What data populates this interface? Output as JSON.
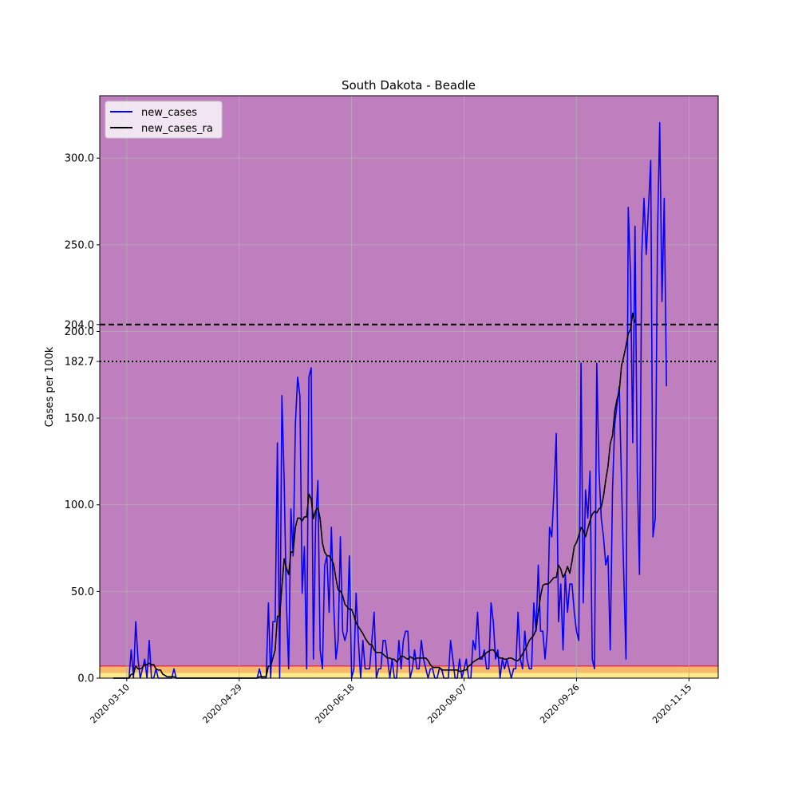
{
  "chart_data": {
    "type": "line",
    "title": "South Dakota - Beadle",
    "xlabel": "",
    "ylabel": "Cases per 100k",
    "x_start": "2020-03-04",
    "x_end": "2020-11-17",
    "xlim": [
      "2020-02-27",
      "2020-11-28"
    ],
    "ylim": [
      0,
      336
    ],
    "grid": true,
    "legend_position": "top-left",
    "x_ticks": [
      "2020-03-10",
      "2020-04-29",
      "2020-06-18",
      "2020-08-07",
      "2020-09-26",
      "2020-11-15"
    ],
    "y_ticks": [
      0.0,
      50.0,
      100.0,
      150.0,
      182.7,
      200.0,
      204.0,
      250.0,
      300.0
    ],
    "y_tick_labels": [
      "0.0",
      "50.0",
      "100.0",
      "150.0",
      "182.7",
      "200.0",
      "204.0",
      "250.0",
      "300.0"
    ],
    "reference_lines": [
      {
        "value": 204.0,
        "style": "dashed",
        "color": "#000000"
      },
      {
        "value": 182.7,
        "style": "dotted",
        "color": "#000000"
      }
    ],
    "background_bands": [
      {
        "from": 0,
        "to": 3,
        "color": "#fde98a"
      },
      {
        "from": 3,
        "to": 7,
        "color": "#f7b96a"
      },
      {
        "from": 7,
        "to": 336,
        "color": "#bf7fbf"
      }
    ],
    "threshold_line": {
      "value": 7,
      "color": "#e0325f"
    },
    "series": [
      {
        "name": "new_cases",
        "color": "#0000ff",
        "values": [
          0,
          0,
          0,
          0,
          0,
          0,
          0,
          0,
          16.3,
          0,
          32.6,
          10.9,
          0,
          5.4,
          10.9,
          0,
          21.7,
          0,
          0,
          5.4,
          0,
          0,
          0,
          0,
          0,
          0,
          0,
          5.4,
          0,
          0,
          0,
          0,
          0,
          0,
          0,
          0,
          0,
          0,
          0,
          0,
          0,
          0,
          0,
          0,
          0,
          0,
          0,
          0,
          0,
          0,
          0,
          0,
          0,
          0,
          0,
          0,
          0,
          0,
          0,
          0,
          0,
          0,
          0,
          0,
          0,
          5.4,
          0,
          0,
          0,
          43.4,
          0,
          32.6,
          32.6,
          135.7,
          0,
          163,
          114,
          43.4,
          5.4,
          97.7,
          70.5,
          146.6,
          173.7,
          162.8,
          49,
          76,
          5.4,
          173.7,
          179,
          11,
          90,
          114,
          16.3,
          5.4,
          65,
          70.5,
          38,
          87,
          43.4,
          11,
          21.7,
          81.5,
          27,
          21.7,
          27,
          70.5,
          0,
          5.4,
          49,
          21.7,
          0,
          21.7,
          5.4,
          5.4,
          5.4,
          21.7,
          38,
          0,
          5.4,
          5.4,
          21.7,
          21.7,
          11,
          0,
          11,
          0,
          0,
          21.7,
          5.4,
          21.7,
          27.1,
          27.1,
          0,
          5.4,
          16.3,
          5.4,
          5.4,
          21.7,
          11,
          5.4,
          0,
          5.4,
          5.4,
          0,
          0,
          5.4,
          5.4,
          0,
          0,
          0,
          21.7,
          11,
          0,
          0,
          11,
          0,
          5.4,
          11,
          0,
          0,
          21.7,
          16.3,
          38,
          11,
          11,
          16.3,
          5.4,
          5.4,
          43.4,
          32.6,
          11,
          16.3,
          0,
          11,
          5.4,
          11,
          5.4,
          0,
          5.4,
          5.4,
          38,
          11,
          5.4,
          27.1,
          11,
          5.4,
          5.4,
          43.4,
          27.1,
          65.2,
          27.1,
          27.1,
          11,
          27.1,
          87,
          81.5,
          108.6,
          141.2,
          32.6,
          54.3,
          16.3,
          59.8,
          38,
          54.3,
          54.3,
          38,
          27.1,
          21.7,
          181.7,
          43.4,
          108.6,
          92.3,
          119.5,
          11,
          5.4,
          181.7,
          119.5,
          92.3,
          81.5,
          65.2,
          70.6,
          16.3,
          108.6,
          146.6,
          157.5,
          168.4,
          113,
          59.8,
          11,
          271.6,
          233.6,
          135.8,
          260.7,
          119.5,
          59.8,
          244.4,
          276.9,
          244.4,
          271.6,
          298.7,
          81.5,
          92.3,
          255.2,
          320.5,
          217.3,
          276.9,
          168.4
        ]
      },
      {
        "name": "new_cases_ra",
        "color": "#000000",
        "values": [
          0,
          0,
          0,
          0,
          0,
          0,
          0,
          0,
          2.3,
          2.3,
          7,
          5.4,
          5.4,
          6.2,
          7.8,
          7.8,
          8.6,
          7.8,
          7.8,
          5.4,
          4.7,
          4.7,
          2.3,
          1.6,
          0.8,
          0.8,
          0.8,
          0.8,
          0,
          0,
          0,
          0,
          0,
          0,
          0,
          0,
          0,
          0,
          0,
          0,
          0,
          0,
          0,
          0,
          0,
          0,
          0,
          0,
          0,
          0,
          0,
          0,
          0,
          0,
          0,
          0,
          0,
          0,
          0,
          0,
          0,
          0,
          0,
          0,
          0,
          0.8,
          0.8,
          0.8,
          0.8,
          7,
          7,
          11.6,
          16.3,
          35.7,
          35.7,
          52.7,
          68.9,
          63.5,
          59.8,
          72.8,
          72.8,
          87,
          92.3,
          92.3,
          90.7,
          93,
          93,
          106.2,
          103.5,
          92,
          96.6,
          98.2,
          92,
          78,
          72.7,
          70.6,
          70.6,
          68.4,
          65.8,
          57.6,
          50.9,
          50.2,
          47.7,
          42.6,
          41.2,
          39.7,
          39.7,
          36.3,
          31.8,
          29.8,
          27.7,
          25.7,
          23.1,
          21.1,
          19.4,
          19.4,
          16.3,
          14.8,
          14.8,
          14.8,
          13.8,
          12.6,
          11.6,
          11.6,
          10.9,
          10.9,
          9.3,
          10.9,
          12.6,
          12.6,
          11.6,
          10.9,
          12.4,
          11.6,
          10.9,
          11.6,
          11.6,
          11.6,
          11.6,
          11.6,
          10.1,
          7.8,
          6.2,
          6.2,
          6.2,
          6.2,
          4.7,
          4.7,
          4.7,
          4.7,
          4.7,
          4.7,
          4.7,
          4.7,
          3.9,
          3.9,
          4.7,
          4.7,
          7,
          7.8,
          9.3,
          10.1,
          10.9,
          11.6,
          12.4,
          13.2,
          14.7,
          15.5,
          16.3,
          16.3,
          14.7,
          12.4,
          11.6,
          11.6,
          10.9,
          10.9,
          11.6,
          11.6,
          10.9,
          10.1,
          10.1,
          11.6,
          14,
          16.3,
          18.6,
          21.7,
          23.3,
          24.8,
          27.9,
          38,
          47.3,
          53.5,
          54.3,
          54.3,
          55,
          56.6,
          58.1,
          58.1,
          65.2,
          62.9,
          58.1,
          60.5,
          64.4,
          60.5,
          67.5,
          76,
          78.3,
          82.3,
          86.9,
          85.4,
          81.5,
          86.2,
          90.8,
          94.6,
          96.2,
          95.4,
          97.7,
          98.5,
          105,
          114.3,
          122.1,
          135.3,
          140,
          154,
          160.8,
          165.3,
          180.3,
          185.5,
          191.7,
          198.8,
          201.2,
          210.6,
          205.1
        ]
      }
    ]
  }
}
